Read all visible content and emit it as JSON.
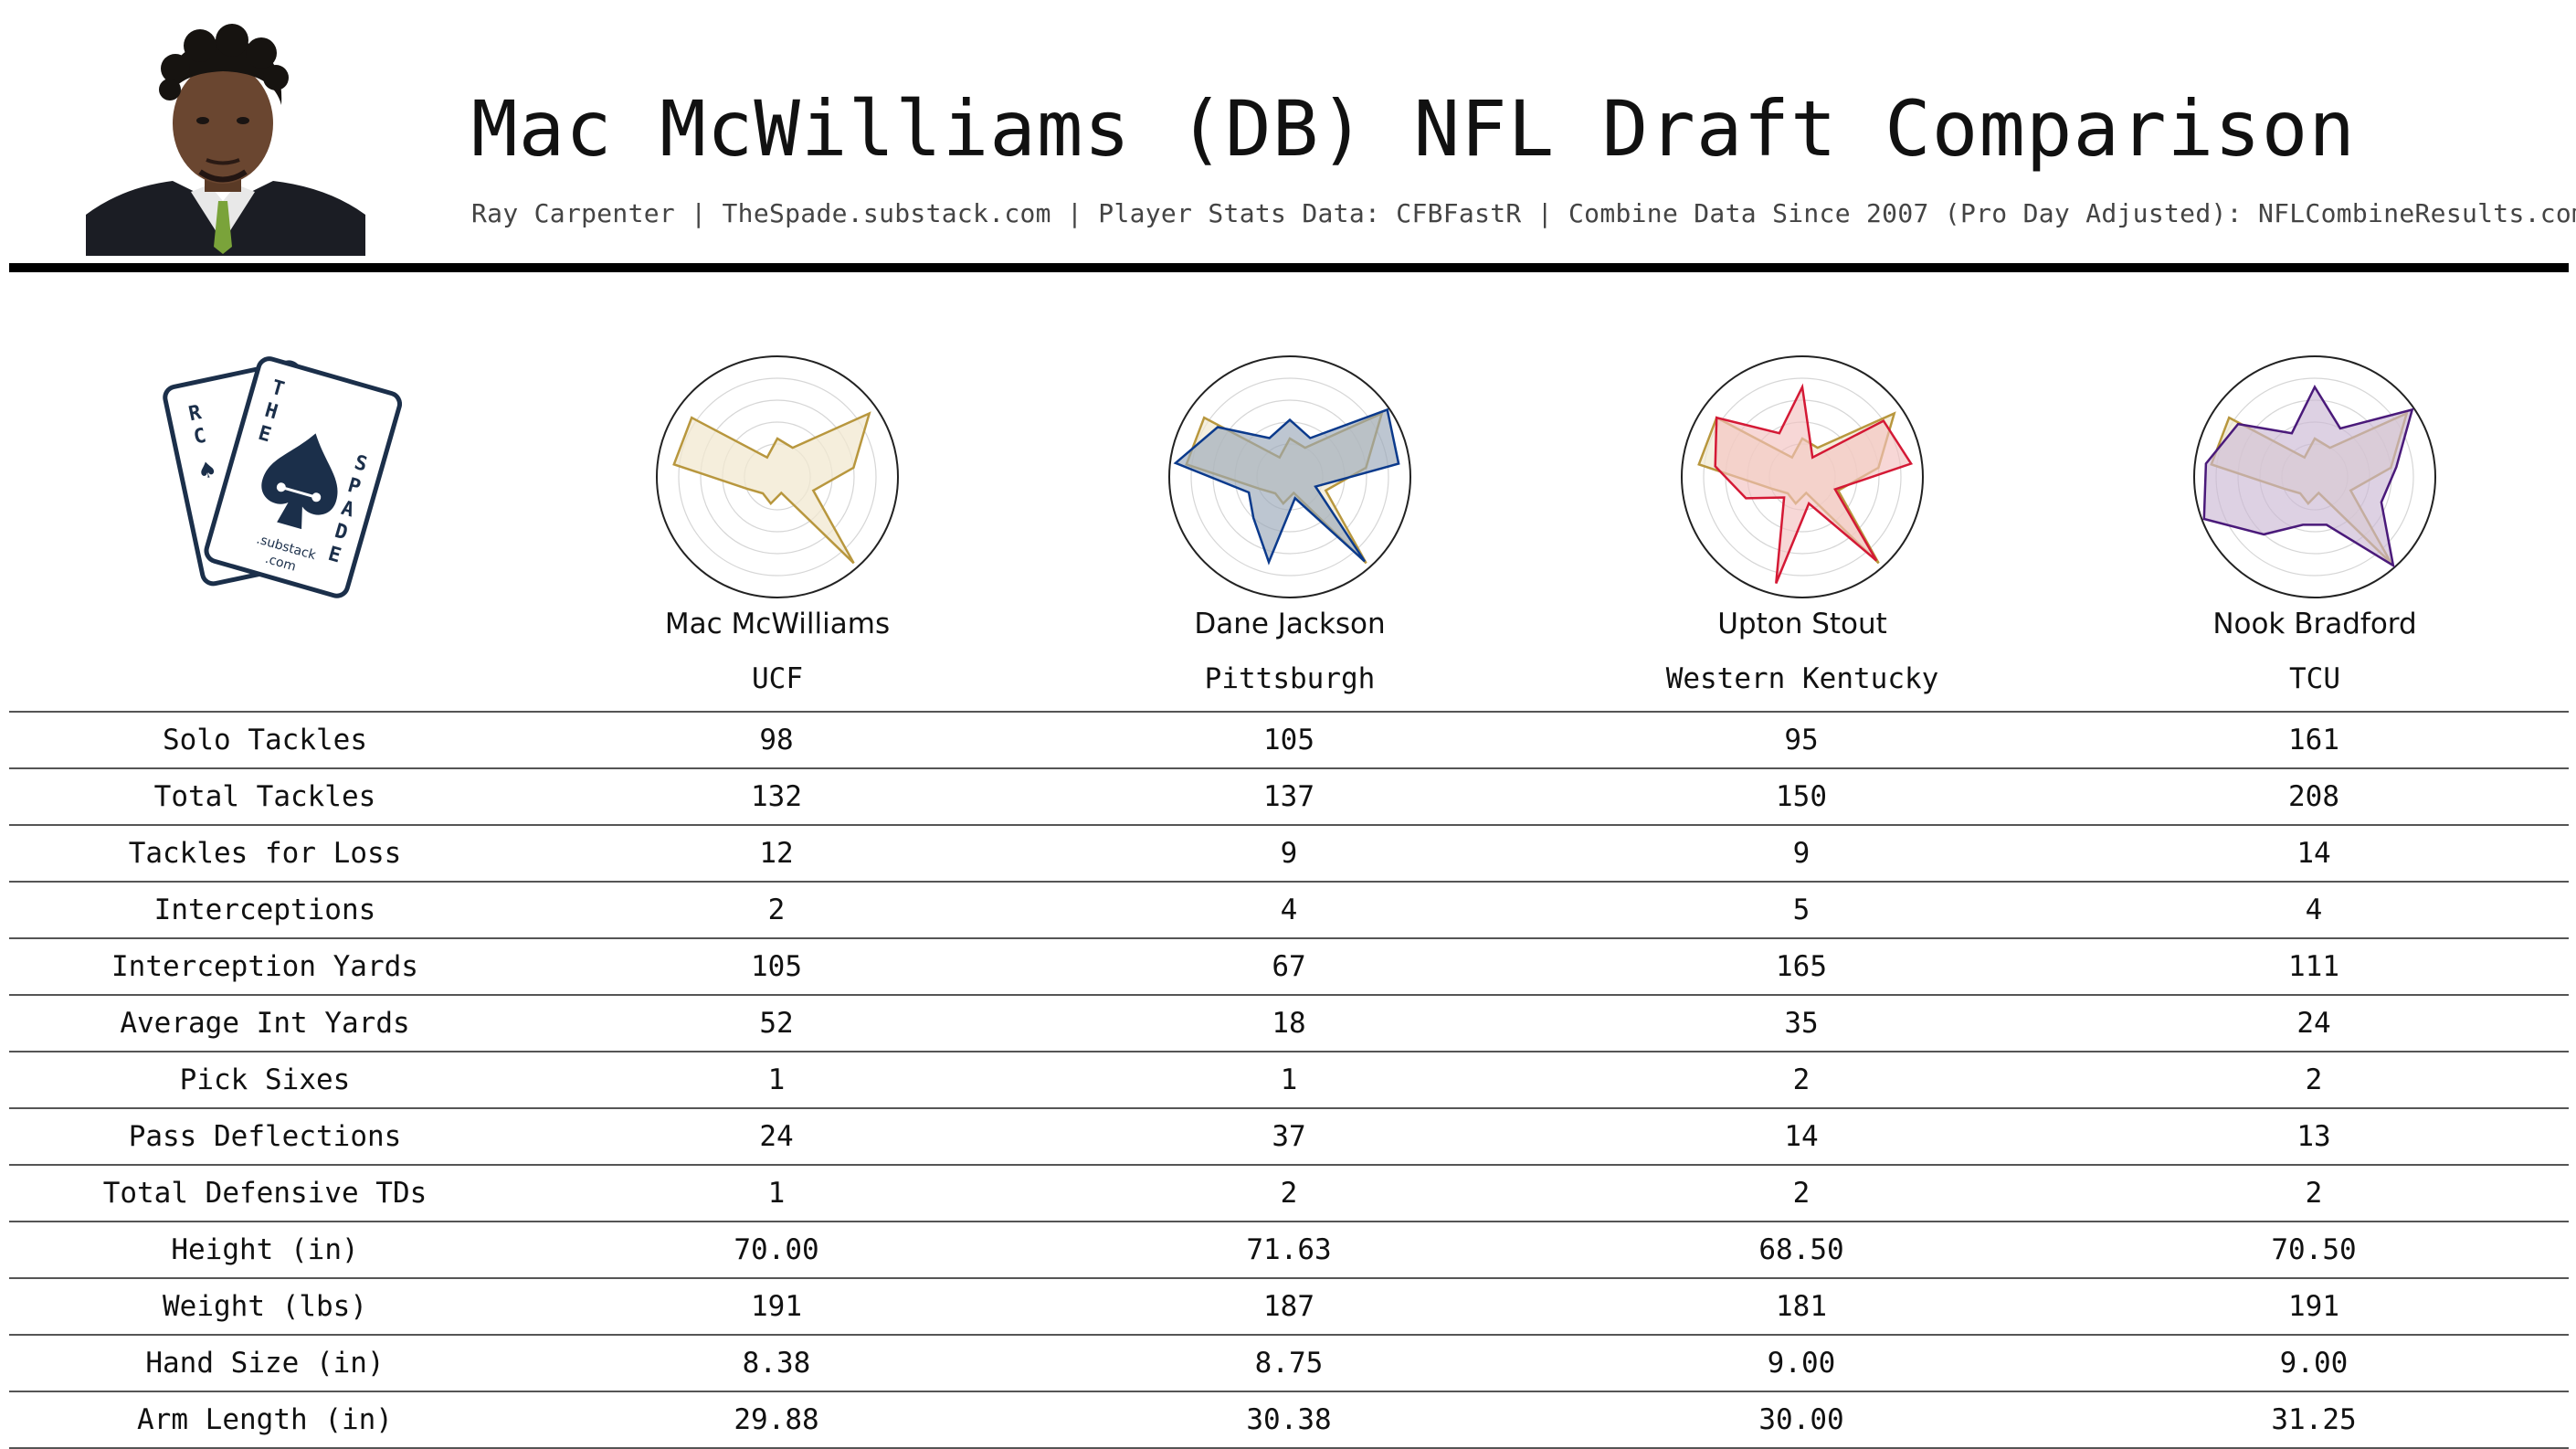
{
  "header": {
    "title": "Mac McWilliams (DB) NFL Draft Comparison",
    "subtitle": "Ray Carpenter | TheSpade.substack.com | Player Stats Data: CFBFastR | Combine Data Since 2007 (Pro Day Adjusted): NFLCombineResults.com"
  },
  "logo": {
    "letters_left": "RC",
    "letters_top": "THE",
    "letters_right": "SPADE",
    "substack": ".substack",
    "dotcom": ".com"
  },
  "players": [
    {
      "name": "Mac McWilliams",
      "school": "UCF",
      "color": "#b8973e",
      "fill": "#f1e8d0"
    },
    {
      "name": "Dane Jackson",
      "school": "Pittsburgh",
      "color": "#0b3a8c",
      "fill": "#9aa8b8"
    },
    {
      "name": "Upton Stout",
      "school": "Western Kentucky",
      "color": "#d41935",
      "fill": "#f3c1c0"
    },
    {
      "name": "Nook Bradford",
      "school": "TCU",
      "color": "#4a1a7a",
      "fill": "#cbb9d4"
    }
  ],
  "chart_data": {
    "type": "table",
    "note": "Radar charts: values are 0-1 percentile-style scores per stat (13 spokes), estimated from the figure; each comparison radar overlays Mac McWilliams.",
    "radar_axes": [
      "Solo Tackles",
      "Total Tackles",
      "Tackles for Loss",
      "Interceptions",
      "Interception Yards",
      "Average Int Yards",
      "Pick Sixes",
      "Pass Deflections",
      "Total Defensive TDs",
      "Height (in)",
      "Weight (lbs)",
      "Hand Size (in)",
      "Arm Length (in)"
    ],
    "radar_series": [
      {
        "name": "Mac McWilliams",
        "values": [
          0.25,
          0.2,
          0.92,
          0.6,
          0.25,
          0.95,
          0.05,
          0.15,
          0.1,
          0.2,
          0.85,
          0.85,
          0.1
        ]
      },
      {
        "name": "Dane Jackson",
        "values": [
          0.42,
          0.3,
          0.98,
          0.9,
          0.15,
          0.93,
          0.1,
          0.7,
          0.4,
          0.3,
          0.95,
          0.7,
          0.3
        ]
      },
      {
        "name": "Upton Stout",
        "values": [
          0.72,
          0.1,
          0.8,
          0.9,
          0.22,
          0.92,
          0.15,
          0.9,
          0.15,
          0.45,
          0.7,
          0.85,
          0.35
        ]
      },
      {
        "name": "Nook Bradford",
        "values": [
          0.72,
          0.4,
          0.98,
          0.65,
          0.55,
          0.98,
          0.35,
          0.35,
          0.6,
          0.98,
          0.9,
          0.75,
          0.35
        ]
      }
    ],
    "rows": [
      {
        "label": "Solo Tackles",
        "values": [
          "98",
          "105",
          "95",
          "161"
        ]
      },
      {
        "label": "Total Tackles",
        "values": [
          "132",
          "137",
          "150",
          "208"
        ]
      },
      {
        "label": "Tackles for Loss",
        "values": [
          "12",
          "9",
          "9",
          "14"
        ]
      },
      {
        "label": "Interceptions",
        "values": [
          "2",
          "4",
          "5",
          "4"
        ]
      },
      {
        "label": "Interception Yards",
        "values": [
          "105",
          "67",
          "165",
          "111"
        ]
      },
      {
        "label": "Average Int Yards",
        "values": [
          "52",
          "18",
          "35",
          "24"
        ]
      },
      {
        "label": "Pick Sixes",
        "values": [
          "1",
          "1",
          "2",
          "2"
        ]
      },
      {
        "label": "Pass Deflections",
        "values": [
          "24",
          "37",
          "14",
          "13"
        ]
      },
      {
        "label": "Total Defensive TDs",
        "values": [
          "1",
          "2",
          "2",
          "2"
        ]
      },
      {
        "label": "Height (in)",
        "values": [
          "70.00",
          "71.63",
          "68.50",
          "70.50"
        ]
      },
      {
        "label": "Weight (lbs)",
        "values": [
          "191",
          "187",
          "181",
          "191"
        ]
      },
      {
        "label": "Hand Size (in)",
        "values": [
          "8.38",
          "8.75",
          "9.00",
          "9.00"
        ]
      },
      {
        "label": "Arm Length (in)",
        "values": [
          "29.88",
          "30.38",
          "30.00",
          "31.25"
        ]
      }
    ]
  }
}
